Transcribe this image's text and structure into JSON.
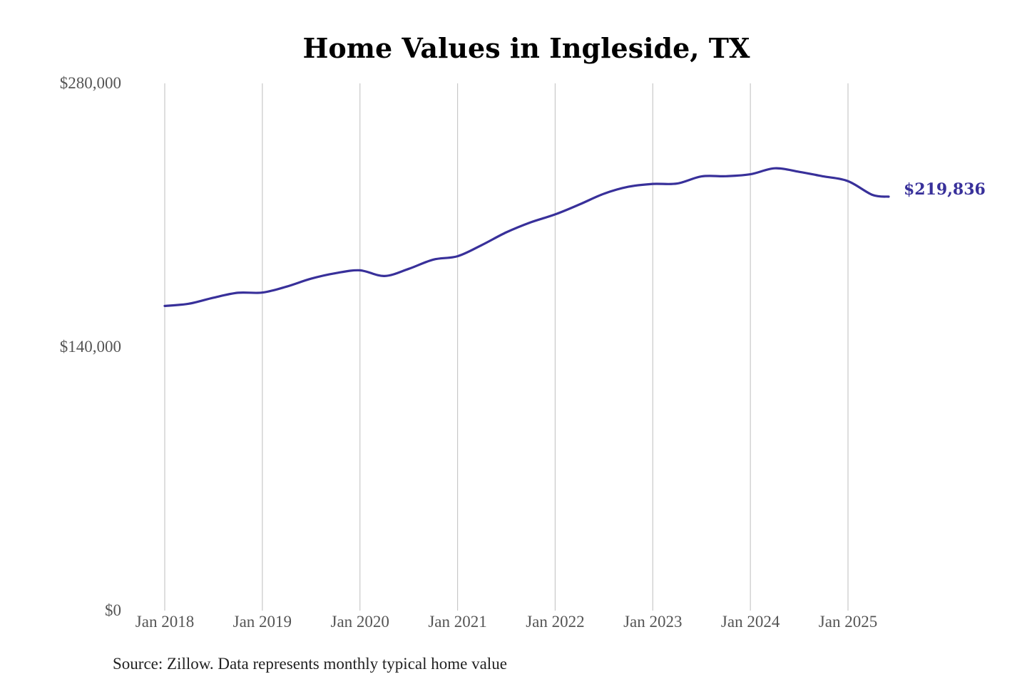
{
  "colors": {
    "line": "#38309a",
    "grid": "#c8c8c8"
  },
  "chart_data": {
    "type": "line",
    "title": "Home Values in Ingleside, TX",
    "source": "Source: Zillow. Data represents monthly typical home value",
    "end_label": "$219,836",
    "ylim": [
      0,
      280000
    ],
    "yticks": [
      {
        "value": 0,
        "label": "$0"
      },
      {
        "value": 140000,
        "label": "$140,000"
      },
      {
        "value": 280000,
        "label": "$280,000"
      }
    ],
    "xlim": [
      "2018-01",
      "2025-06"
    ],
    "xticks": [
      {
        "date": "2018-01",
        "label": "Jan 2018"
      },
      {
        "date": "2019-01",
        "label": "Jan 2019"
      },
      {
        "date": "2020-01",
        "label": "Jan 2020"
      },
      {
        "date": "2021-01",
        "label": "Jan 2021"
      },
      {
        "date": "2022-01",
        "label": "Jan 2022"
      },
      {
        "date": "2023-01",
        "label": "Jan 2023"
      },
      {
        "date": "2024-01",
        "label": "Jan 2024"
      },
      {
        "date": "2025-01",
        "label": "Jan 2025"
      }
    ],
    "grid": "vertical",
    "series": [
      {
        "x": [
          "2018-01",
          "2018-04",
          "2018-07",
          "2018-10",
          "2019-01",
          "2019-04",
          "2019-07",
          "2019-10",
          "2020-01",
          "2020-04",
          "2020-07",
          "2020-10",
          "2021-01",
          "2021-04",
          "2021-07",
          "2021-10",
          "2022-01",
          "2022-04",
          "2022-07",
          "2022-10",
          "2023-01",
          "2023-04",
          "2023-07",
          "2023-10",
          "2024-01",
          "2024-04",
          "2024-07",
          "2024-10",
          "2025-01",
          "2025-04",
          "2025-06"
        ],
        "y": [
          161800,
          163000,
          166200,
          168800,
          168900,
          172100,
          176300,
          179200,
          180700,
          177700,
          181500,
          186400,
          188200,
          194200,
          200900,
          206200,
          210400,
          215700,
          221400,
          225100,
          226600,
          226800,
          230600,
          230700,
          231700,
          234900,
          233000,
          230600,
          228100,
          220800,
          219836
        ]
      }
    ]
  }
}
